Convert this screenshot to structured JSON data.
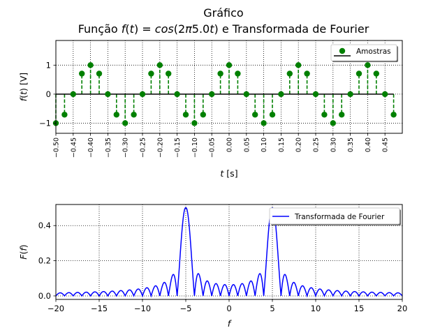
{
  "figure": {
    "suptitle": "Gráfico",
    "title": "Função f(t) = cos(2π5.0t) e Transformada de Fourier"
  },
  "chart_data": [
    {
      "type": "stem",
      "xlabel": "t [s]",
      "ylabel": "f(t) [V]",
      "xlim": [
        -0.5,
        0.5
      ],
      "ylim": [
        -1.35,
        1.85
      ],
      "grid": true,
      "legend": {
        "position": "top-right",
        "entries": [
          "Amostras"
        ]
      },
      "x_ticks": [
        "-0.50",
        "-0.45",
        "-0.40",
        "-0.35",
        "-0.30",
        "-0.25",
        "-0.20",
        "-0.15",
        "-0.10",
        "-0.05",
        "0.00",
        "0.05",
        "0.10",
        "0.15",
        "0.20",
        "0.25",
        "0.30",
        "0.35",
        "0.40",
        "0.45"
      ],
      "y_ticks": [
        "-1",
        "0",
        "1"
      ],
      "series": [
        {
          "name": "Amostras",
          "color": "#008000",
          "x": [
            -0.5,
            -0.475,
            -0.45,
            -0.425,
            -0.4,
            -0.375,
            -0.35,
            -0.325,
            -0.3,
            -0.275,
            -0.25,
            -0.225,
            -0.2,
            -0.175,
            -0.15,
            -0.125,
            -0.1,
            -0.075,
            -0.05,
            -0.025,
            0.0,
            0.025,
            0.05,
            0.075,
            0.1,
            0.125,
            0.15,
            0.175,
            0.2,
            0.225,
            0.25,
            0.275,
            0.3,
            0.325,
            0.35,
            0.375,
            0.4,
            0.425,
            0.45,
            0.475
          ],
          "y": [
            -1.0,
            -0.707,
            0.0,
            0.707,
            1.0,
            0.707,
            0.0,
            -0.707,
            -1.0,
            -0.707,
            0.0,
            0.707,
            1.0,
            0.707,
            0.0,
            -0.707,
            -1.0,
            -0.707,
            0.0,
            0.707,
            1.0,
            0.707,
            0.0,
            -0.707,
            -1.0,
            -0.707,
            0.0,
            0.707,
            1.0,
            0.707,
            0.0,
            -0.707,
            -1.0,
            -0.707,
            0.0,
            0.707,
            1.0,
            0.707,
            0.0,
            -0.707
          ]
        }
      ]
    },
    {
      "type": "line",
      "xlabel": "f",
      "ylabel": "F(f)",
      "xlim": [
        -20,
        20
      ],
      "ylim": [
        -0.02,
        0.52
      ],
      "grid": true,
      "legend": {
        "position": "top-right",
        "entries": [
          "Transformada de Fourier"
        ]
      },
      "x_ticks": [
        "−20",
        "−15",
        "−10",
        "−5",
        "0",
        "5",
        "10",
        "15",
        "20"
      ],
      "y_ticks": [
        "0.0",
        "0.2",
        "0.4"
      ],
      "series": [
        {
          "name": "Transformada de Fourier",
          "color": "#0000ff",
          "function": "0.5*(|sinc(f-5)| + |sinc(f+5)|)",
          "f_range": [
            -20,
            20
          ]
        }
      ]
    }
  ]
}
